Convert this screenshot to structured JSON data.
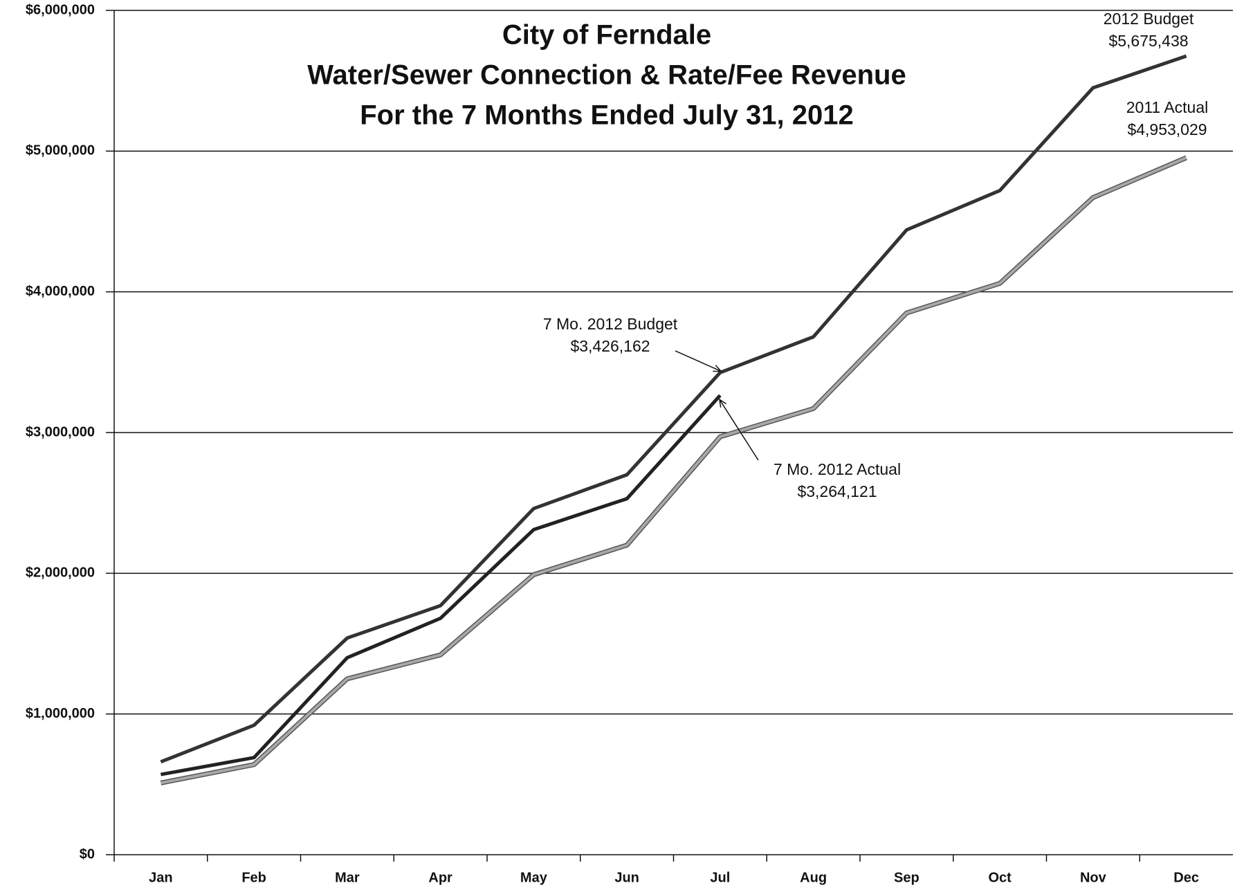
{
  "chart_data": {
    "type": "line",
    "title": [
      "City of Ferndale",
      "Water/Sewer Connection & Rate/Fee Revenue",
      "For the 7 Months Ended July 31, 2012"
    ],
    "categories": [
      "Jan",
      "Feb",
      "Mar",
      "Apr",
      "May",
      "Jun",
      "Jul",
      "Aug",
      "Sep",
      "Oct",
      "Nov",
      "Dec"
    ],
    "series": [
      {
        "color": "#333333",
        "values": [
          660000,
          920000,
          1540000,
          1770000,
          2460000,
          2700000,
          3426162,
          3680000,
          4440000,
          4720000,
          5450000,
          5675438
        ]
      },
      {
        "color": "#222222",
        "values": [
          570000,
          690000,
          1400000,
          1680000,
          2310000,
          2530000,
          3264121,
          null,
          null,
          null,
          null,
          null
        ]
      },
      {
        "color": "#a8a8a8",
        "values": [
          510000,
          640000,
          1250000,
          1420000,
          1990000,
          2200000,
          2970000,
          3170000,
          3850000,
          4060000,
          4670000,
          4953029
        ]
      }
    ],
    "annotations": [
      {
        "lines": [
          "2012 Budget",
          "$5,675,438"
        ]
      },
      {
        "lines": [
          "2011 Actual",
          "$4,953,029"
        ]
      },
      {
        "lines": [
          "7 Mo. 2012 Budget",
          "$3,426,162"
        ]
      },
      {
        "lines": [
          "7 Mo. 2012 Actual",
          "$3,264,121"
        ]
      }
    ],
    "ylim": [
      0,
      6000000
    ],
    "yticks": [
      {
        "value": 0,
        "label": "$0"
      },
      {
        "value": 1000000,
        "label": "$1,000,000"
      },
      {
        "value": 2000000,
        "label": "$2,000,000"
      },
      {
        "value": 3000000,
        "label": "$3,000,000"
      },
      {
        "value": 4000000,
        "label": "$4,000,000"
      },
      {
        "value": 5000000,
        "label": "$5,000,000"
      },
      {
        "value": 6000000,
        "label": "$6,000,000"
      }
    ],
    "grid": true
  }
}
